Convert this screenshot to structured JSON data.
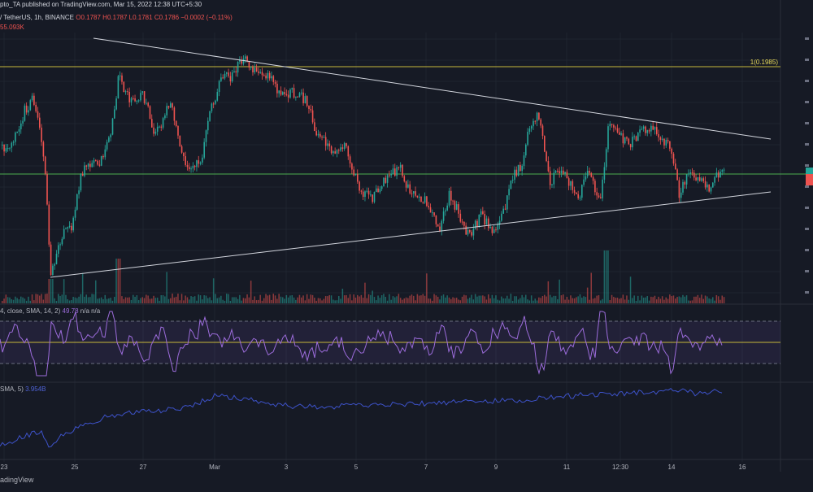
{
  "header": {
    "publisher": "pto_TA published on TradingView.com, Mar 15, 2022 12:38 UTC+5:30",
    "symbol": " / TetherUS, 1h, BINANCE",
    "o": "O0.1787",
    "h": "H0.1787",
    "l": "L0.1781",
    "c": "C0.1786",
    "change": "−0.0002 (−0.11%)",
    "volume": "55.093K",
    "rsi_label": "4, close, SMA, 14, 2)",
    "rsi_value": "49.78",
    "rsi_extra": "n/a  n/a",
    "ind_label": "SMA, 5)",
    "ind_value": "3.954B"
  },
  "footer": {
    "brand": "adingView"
  },
  "price_axis": {
    "level_label": "1(0.1985)"
  },
  "colors": {
    "background": "#161a25",
    "up": "#26a69a",
    "down": "#ef5350",
    "level_line": "#c5b83a",
    "green_line": "#4caf50",
    "trendline": "#d1d4dc",
    "rsi": "#9c6cdb",
    "indicator": "#3d52c9"
  },
  "chart_data": {
    "type": "candlestick",
    "x_tick_labels": [
      "23",
      "25",
      "27",
      "Mar",
      "3",
      "5",
      "7",
      "9",
      "11",
      "12:30",
      "14",
      "16"
    ],
    "candles": [],
    "horizontal_level": 0.1985,
    "rsi_levels": [
      30,
      50,
      70
    ],
    "annotations": [
      "1(0.1985)"
    ],
    "grid": true
  }
}
